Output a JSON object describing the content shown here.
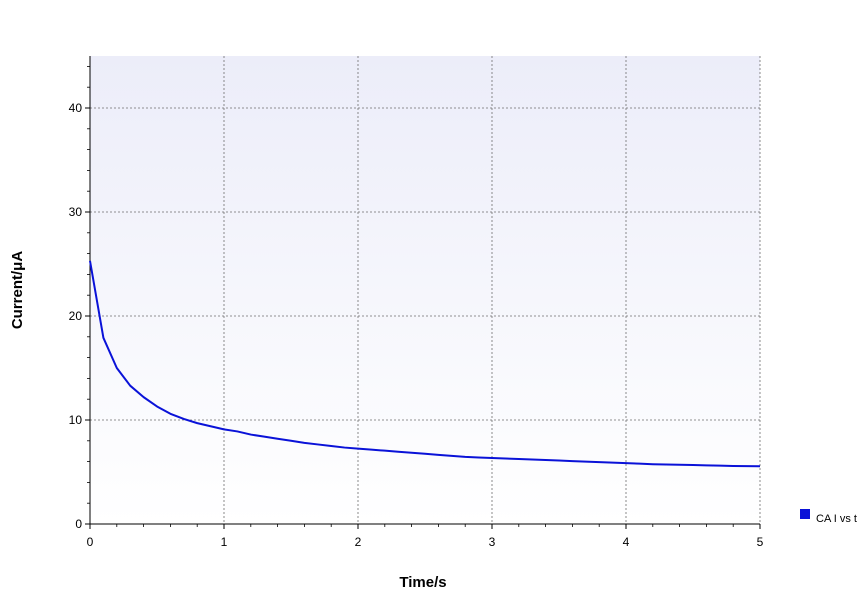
{
  "chart_data": {
    "type": "line",
    "xlabel": "Time/s",
    "ylabel": "Current/μA",
    "xlim": [
      0,
      5
    ],
    "ylim": [
      0,
      45
    ],
    "x_ticks": [
      0,
      1,
      2,
      3,
      4,
      5
    ],
    "y_ticks": [
      0,
      10,
      20,
      30,
      40
    ],
    "grid": true,
    "legend_position": "right",
    "colors": {
      "series": "#0a12d8",
      "plot_bg_top": "#ecedf9",
      "plot_bg_bottom": "#ffffff",
      "grid": "#6e6e6e"
    },
    "series": [
      {
        "name": "CA I vs t",
        "x": [
          0,
          0.1,
          0.2,
          0.3,
          0.4,
          0.5,
          0.6,
          0.7,
          0.8,
          0.9,
          1.0,
          1.1,
          1.2,
          1.3,
          1.4,
          1.5,
          1.6,
          1.7,
          1.8,
          1.9,
          2.0,
          2.1,
          2.2,
          2.3,
          2.4,
          2.5,
          2.6,
          2.7,
          2.8,
          2.9,
          3.0,
          3.1,
          3.2,
          3.3,
          3.4,
          3.5,
          3.6,
          3.7,
          3.8,
          3.9,
          4.0,
          4.1,
          4.2,
          4.3,
          4.4,
          4.5,
          4.6,
          4.7,
          4.8,
          4.9,
          5.0
        ],
        "y": [
          25.3,
          17.9,
          15.0,
          13.3,
          12.2,
          11.3,
          10.6,
          10.1,
          9.7,
          9.4,
          9.1,
          8.9,
          8.6,
          8.4,
          8.2,
          8.0,
          7.8,
          7.65,
          7.5,
          7.35,
          7.25,
          7.15,
          7.05,
          6.95,
          6.85,
          6.75,
          6.65,
          6.55,
          6.45,
          6.4,
          6.35,
          6.3,
          6.25,
          6.2,
          6.15,
          6.1,
          6.05,
          6.0,
          5.95,
          5.9,
          5.85,
          5.8,
          5.75,
          5.72,
          5.7,
          5.67,
          5.64,
          5.61,
          5.58,
          5.56,
          5.55
        ]
      }
    ]
  }
}
